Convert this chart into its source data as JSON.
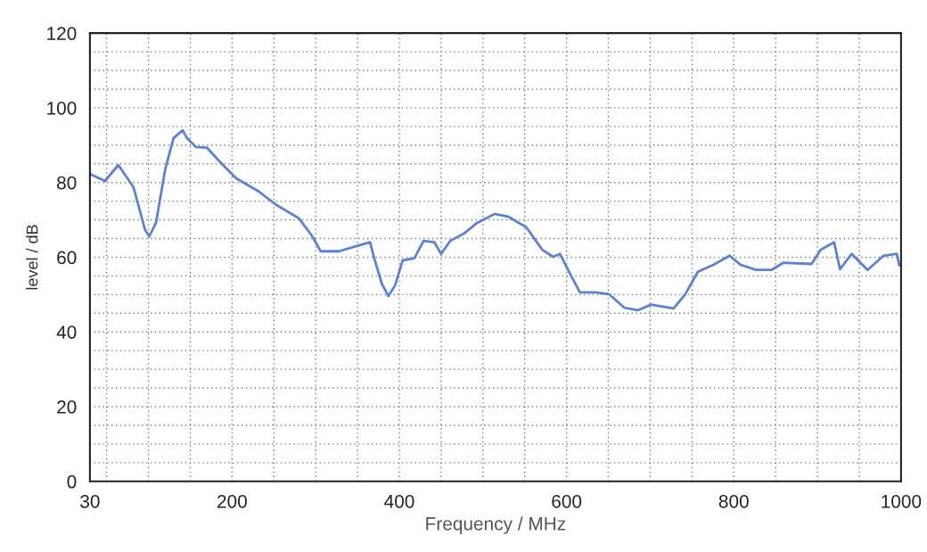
{
  "chart_data": {
    "type": "line",
    "xlabel": "Frequency / MHz",
    "ylabel": "level / dB",
    "xlim": [
      30,
      1000
    ],
    "ylim": [
      0,
      120
    ],
    "xticks": [
      30,
      200,
      400,
      600,
      800,
      1000
    ],
    "yticks": [
      0,
      20,
      40,
      60,
      80,
      100,
      120
    ],
    "grid": true,
    "marker": "none",
    "line_style": "solid",
    "series": [
      {
        "color": "#5b82d0",
        "x": [
          30,
          48,
          64,
          82,
          96,
          101,
          109,
          120,
          130,
          141,
          146,
          157,
          170,
          189,
          205,
          232,
          253,
          280,
          296,
          306,
          328,
          349,
          365,
          370,
          379,
          387,
          395,
          404,
          418,
          429,
          442,
          450,
          461,
          477,
          493,
          514,
          530,
          552,
          571,
          584,
          592,
          603,
          616,
          635,
          651,
          669,
          685,
          701,
          728,
          742,
          757,
          776,
          795,
          808,
          827,
          845,
          859,
          893,
          904,
          920,
          927,
          941,
          960,
          979,
          995,
          998
        ],
        "values": [
          82.3,
          80.4,
          84.7,
          78.8,
          67.3,
          65.6,
          69.2,
          83.5,
          91.9,
          94,
          91.9,
          89.5,
          89.3,
          84.7,
          81.1,
          77.6,
          74,
          70.4,
          65.6,
          61.6,
          61.6,
          63,
          64,
          59.7,
          53,
          49.6,
          52.5,
          59.2,
          59.7,
          64.4,
          64,
          60.9,
          64.4,
          66.3,
          69.2,
          71.6,
          70.9,
          68,
          62,
          60.1,
          60.9,
          56.1,
          50.6,
          50.6,
          50.1,
          46.5,
          45.8,
          47.3,
          46.3,
          50.1,
          56.1,
          58,
          60.4,
          58,
          56.6,
          56.6,
          58.5,
          58.2,
          62,
          64,
          56.8,
          60.9,
          56.6,
          60.4,
          60.9,
          57.8
        ]
      }
    ]
  }
}
